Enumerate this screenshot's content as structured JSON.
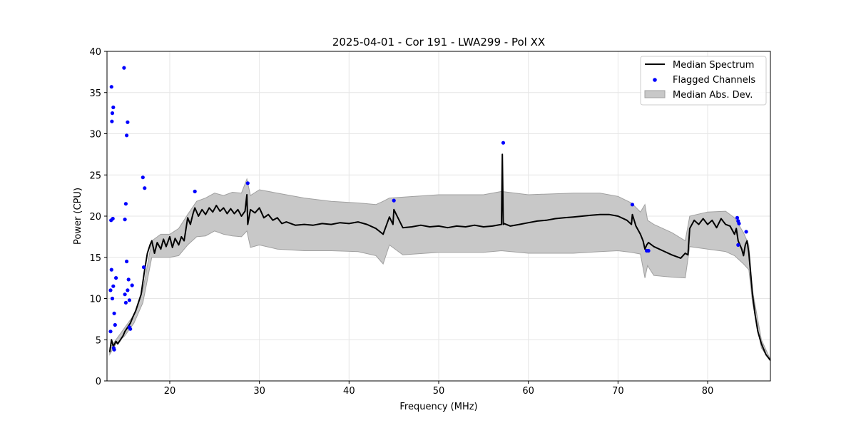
{
  "chart_data": {
    "type": "line",
    "title": "2025-04-01 - Cor 191 - LWA299 - Pol XX",
    "xlabel": "Frequency (MHz)",
    "ylabel": "Power (CPU)",
    "xlim": [
      13.0,
      87.0
    ],
    "ylim": [
      0,
      40
    ],
    "xticks": [
      20,
      30,
      40,
      50,
      60,
      70,
      80
    ],
    "yticks": [
      0,
      5,
      10,
      15,
      20,
      25,
      30,
      35,
      40
    ],
    "grid": true,
    "legend_position": "top-right",
    "legend": [
      {
        "label": "Median Spectrum",
        "kind": "line",
        "color": "#000000"
      },
      {
        "label": "Flagged Channels",
        "kind": "marker",
        "color": "#0000ff"
      },
      {
        "label": "Median Abs. Dev.",
        "kind": "patch",
        "color": "#c8c8c8"
      }
    ],
    "colors": {
      "median": "#000000",
      "flagged": "#0000ff",
      "band": "#c8c8c8",
      "band_edge": "#a0a0a0",
      "grid": "#e6e6e6"
    },
    "median_spectrum": {
      "x": [
        13.3,
        13.5,
        13.7,
        14.0,
        14.2,
        14.5,
        14.8,
        15.0,
        15.3,
        15.6,
        15.9,
        16.2,
        16.5,
        16.8,
        17.0,
        17.2,
        17.5,
        17.8,
        18.0,
        18.3,
        18.6,
        19.0,
        19.3,
        19.6,
        20.0,
        20.3,
        20.6,
        21.0,
        21.3,
        21.6,
        22.0,
        22.3,
        22.6,
        22.8,
        23.2,
        23.6,
        24.0,
        24.4,
        24.8,
        25.2,
        25.6,
        26.0,
        26.4,
        26.8,
        27.2,
        27.6,
        28.0,
        28.4,
        28.6,
        28.7,
        29.0,
        29.5,
        30.0,
        30.5,
        31.0,
        31.5,
        32.0,
        32.5,
        33.0,
        34.0,
        35.0,
        36.0,
        37.0,
        38.0,
        39.0,
        40.0,
        41.0,
        42.0,
        43.0,
        43.8,
        44.5,
        44.9,
        45.0,
        46.0,
        47.0,
        48.0,
        49.0,
        50.0,
        51.0,
        52.0,
        53.0,
        54.0,
        55.0,
        56.0,
        57.0,
        57.1,
        57.2,
        57.3,
        58.0,
        59.0,
        60.0,
        61.0,
        62.0,
        63.0,
        64.0,
        65.0,
        66.0,
        67.0,
        68.0,
        69.0,
        70.0,
        71.0,
        71.5,
        71.6,
        72.0,
        72.5,
        72.8,
        73.0,
        73.2,
        73.4,
        74.0,
        75.0,
        76.0,
        77.0,
        77.5,
        77.8,
        78.0,
        78.5,
        79.0,
        79.5,
        80.0,
        80.5,
        81.0,
        81.5,
        82.0,
        82.5,
        83.0,
        83.2,
        83.4,
        83.6,
        83.8,
        84.0,
        84.2,
        84.4,
        84.6,
        85.0,
        85.3,
        85.6,
        86.0,
        86.5,
        87.0
      ],
      "y": [
        3.5,
        5.0,
        4.2,
        4.8,
        4.5,
        5.0,
        5.5,
        6.0,
        6.5,
        7.0,
        7.8,
        8.5,
        9.5,
        10.5,
        12.0,
        13.5,
        15.5,
        16.5,
        17.0,
        15.5,
        16.8,
        16.0,
        17.2,
        16.3,
        17.5,
        16.2,
        17.3,
        16.5,
        17.5,
        17.0,
        19.8,
        19.0,
        20.3,
        21.0,
        20.0,
        20.8,
        20.2,
        21.0,
        20.5,
        21.3,
        20.6,
        21.0,
        20.3,
        20.9,
        20.3,
        20.8,
        20.0,
        20.6,
        22.6,
        19.0,
        20.8,
        20.4,
        21.0,
        19.8,
        20.2,
        19.5,
        19.8,
        19.1,
        19.3,
        18.9,
        19.0,
        18.9,
        19.1,
        19.0,
        19.2,
        19.1,
        19.3,
        19.0,
        18.5,
        17.8,
        19.9,
        19.0,
        20.8,
        18.6,
        18.7,
        18.9,
        18.7,
        18.8,
        18.6,
        18.8,
        18.7,
        18.9,
        18.7,
        18.8,
        19.0,
        27.5,
        19.0,
        19.1,
        18.8,
        19.0,
        19.2,
        19.4,
        19.5,
        19.7,
        19.8,
        19.9,
        20.0,
        20.1,
        20.2,
        20.2,
        20.0,
        19.5,
        19.0,
        20.2,
        18.8,
        17.8,
        17.0,
        16.0,
        16.5,
        16.8,
        16.3,
        15.8,
        15.3,
        14.9,
        15.5,
        15.3,
        18.5,
        19.5,
        19.0,
        19.7,
        19.0,
        19.5,
        18.6,
        19.7,
        19.0,
        18.8,
        17.8,
        18.5,
        17.0,
        16.5,
        16.0,
        15.2,
        16.5,
        17.0,
        15.5,
        10.5,
        8.0,
        6.0,
        4.5,
        3.2,
        2.5
      ]
    },
    "mad_band": {
      "x": [
        13.3,
        14.0,
        15.0,
        16.0,
        17.0,
        18.0,
        19.0,
        20.0,
        21.0,
        22.0,
        23.0,
        24.0,
        25.0,
        26.0,
        27.0,
        28.0,
        28.6,
        29.0,
        30.0,
        32.0,
        35.0,
        38.0,
        41.0,
        43.0,
        43.8,
        44.5,
        46.0,
        50.0,
        55.0,
        57.0,
        60.0,
        65.0,
        68.0,
        70.0,
        71.5,
        72.5,
        73.0,
        73.3,
        74.0,
        76.0,
        77.5,
        78.0,
        80.0,
        82.0,
        83.0,
        84.0,
        84.6,
        85.0,
        86.0,
        87.0
      ],
      "upper": [
        4.0,
        5.0,
        6.5,
        8.0,
        11.0,
        17.0,
        17.8,
        17.8,
        18.5,
        20.2,
        21.8,
        22.2,
        22.8,
        22.5,
        22.9,
        22.8,
        24.5,
        22.5,
        23.2,
        22.8,
        22.2,
        21.8,
        21.6,
        21.4,
        21.8,
        22.2,
        22.3,
        22.6,
        22.6,
        23.0,
        22.6,
        22.8,
        22.8,
        22.4,
        21.6,
        20.5,
        21.4,
        19.5,
        19.0,
        18.0,
        17.0,
        20.0,
        20.5,
        20.6,
        19.8,
        18.0,
        16.5,
        11.0,
        5.0,
        2.6
      ],
      "lower": [
        3.2,
        4.5,
        5.5,
        7.0,
        9.5,
        15.0,
        15.0,
        15.0,
        15.2,
        16.5,
        17.5,
        17.6,
        18.2,
        17.8,
        17.6,
        17.5,
        18.2,
        16.2,
        16.5,
        16.0,
        15.8,
        15.8,
        15.7,
        15.2,
        14.2,
        16.5,
        15.3,
        15.6,
        15.6,
        15.8,
        15.5,
        15.5,
        15.7,
        15.8,
        15.6,
        15.4,
        12.5,
        14.0,
        12.8,
        12.6,
        12.5,
        16.3,
        16.0,
        15.7,
        15.2,
        14.2,
        13.5,
        9.5,
        4.0,
        2.4
      ]
    },
    "flagged_channels": {
      "x": [
        13.4,
        13.5,
        13.6,
        13.55,
        13.7,
        13.45,
        13.65,
        13.5,
        13.6,
        13.7,
        13.4,
        13.8,
        14.0,
        13.9,
        13.75,
        13.8,
        14.9,
        15.0,
        15.1,
        15.2,
        15.0,
        15.3,
        15.1,
        15.4,
        15.2,
        15.3,
        15.5,
        15.6,
        15.5,
        15.8,
        17.0,
        17.2,
        17.1,
        22.8,
        28.7,
        45.0,
        57.2,
        71.6,
        73.2,
        73.4,
        83.3,
        83.4,
        83.5,
        84.3,
        83.4
      ],
      "y": [
        11.0,
        35.7,
        32.5,
        31.5,
        33.2,
        19.5,
        19.7,
        13.5,
        10.0,
        11.5,
        6.0,
        8.2,
        12.5,
        6.8,
        4.0,
        3.8,
        38.0,
        19.6,
        21.5,
        29.8,
        10.5,
        31.4,
        9.5,
        12.3,
        14.5,
        11.0,
        9.8,
        6.3,
        6.5,
        11.6,
        24.7,
        23.4,
        13.8,
        23.0,
        24.0,
        21.9,
        28.9,
        21.4,
        15.8,
        15.8,
        19.8,
        19.4,
        19.1,
        18.1,
        16.5
      ]
    }
  }
}
